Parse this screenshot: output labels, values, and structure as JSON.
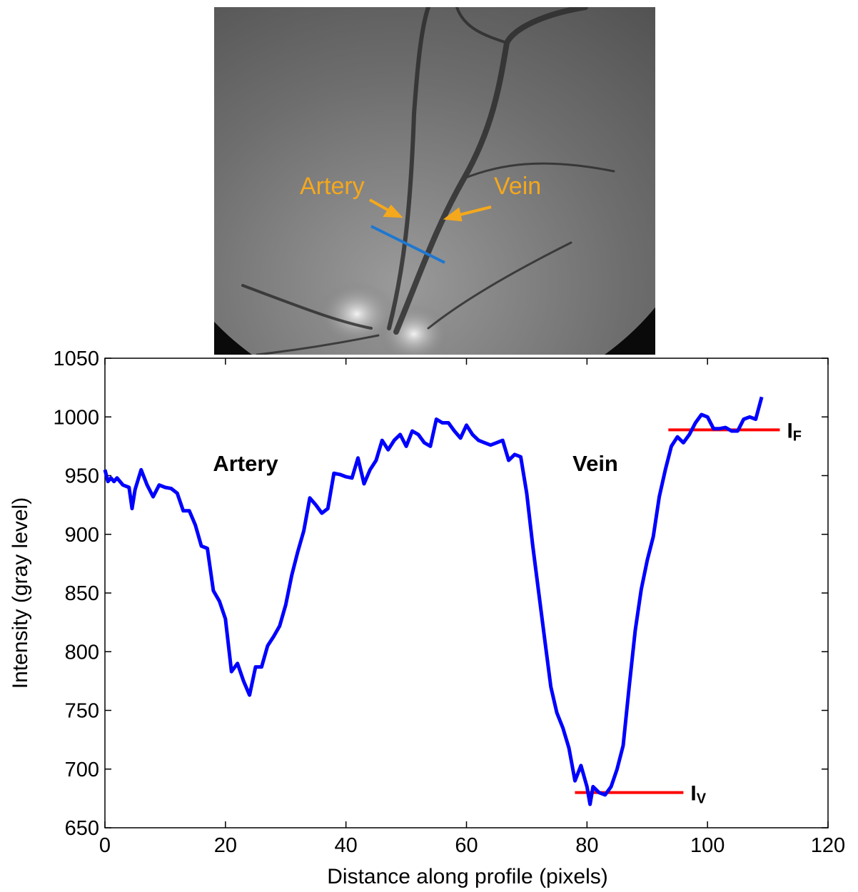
{
  "image": {
    "labels": [
      "Artery",
      "Vein"
    ]
  },
  "chart_data": {
    "type": "line",
    "xlabel": "Distance along profile (pixels)",
    "ylabel": "Intensity (gray level)",
    "xlim": [
      0,
      120
    ],
    "xticks": [
      0,
      20,
      40,
      60,
      80,
      100,
      120
    ],
    "ylim": [
      650,
      1050
    ],
    "yticks": [
      650,
      700,
      750,
      800,
      850,
      900,
      950,
      1000,
      1050
    ],
    "color": "#0000ff",
    "annotations": [
      "Artery",
      "Vein"
    ],
    "x": [
      0,
      0.5,
      1,
      1.5,
      2,
      3,
      4,
      4.5,
      5,
      6,
      7,
      8,
      9,
      10,
      11,
      12,
      13,
      14,
      15,
      16,
      17,
      18,
      19,
      20,
      21,
      22,
      23,
      24,
      25,
      26,
      27,
      28,
      29,
      30,
      31,
      32,
      33,
      34,
      35,
      36,
      37,
      38,
      39,
      40,
      41,
      42,
      43,
      44,
      45,
      46,
      47,
      48,
      49,
      50,
      51,
      52,
      53,
      54,
      55,
      56,
      57,
      58,
      59,
      60,
      61,
      62,
      63,
      64,
      65,
      66,
      67,
      68,
      69,
      70,
      71,
      72,
      73,
      74,
      75,
      76,
      77,
      78,
      79,
      80,
      80.5,
      81,
      82,
      83,
      84,
      85,
      86,
      87,
      88,
      89,
      90,
      91,
      92,
      93,
      94,
      95,
      96,
      97,
      98,
      99,
      100,
      101,
      102,
      103,
      104,
      105,
      106,
      107,
      108,
      109
    ],
    "values": [
      955,
      945,
      948,
      945,
      948,
      942,
      940,
      922,
      938,
      955,
      942,
      932,
      942,
      940,
      939,
      935,
      920,
      920,
      908,
      890,
      888,
      852,
      843,
      828,
      783,
      790,
      775,
      763,
      787,
      787,
      805,
      813,
      822,
      840,
      865,
      885,
      903,
      931,
      925,
      918,
      922,
      952,
      951,
      949,
      948,
      965,
      943,
      955,
      963,
      980,
      972,
      980,
      985,
      975,
      988,
      985,
      978,
      975,
      998,
      995,
      995,
      988,
      982,
      993,
      985,
      980,
      978,
      976,
      978,
      980,
      963,
      968,
      966,
      935,
      890,
      850,
      810,
      770,
      748,
      735,
      718,
      690,
      703,
      685,
      670,
      685,
      680,
      678,
      685,
      700,
      720,
      770,
      818,
      853,
      878,
      898,
      932,
      955,
      975,
      983,
      978,
      985,
      995,
      1002,
      1000,
      990,
      990,
      991,
      988,
      988,
      998,
      1000,
      998,
      1017
    ],
    "reference_lines": [
      {
        "label": "I",
        "subscript": "F",
        "value": 989,
        "xrange": [
          93.5,
          112
        ],
        "color": "#ff0000"
      },
      {
        "label": "I",
        "subscript": "V",
        "value": 680,
        "xrange": [
          78,
          96
        ],
        "color": "#ff0000"
      }
    ]
  }
}
